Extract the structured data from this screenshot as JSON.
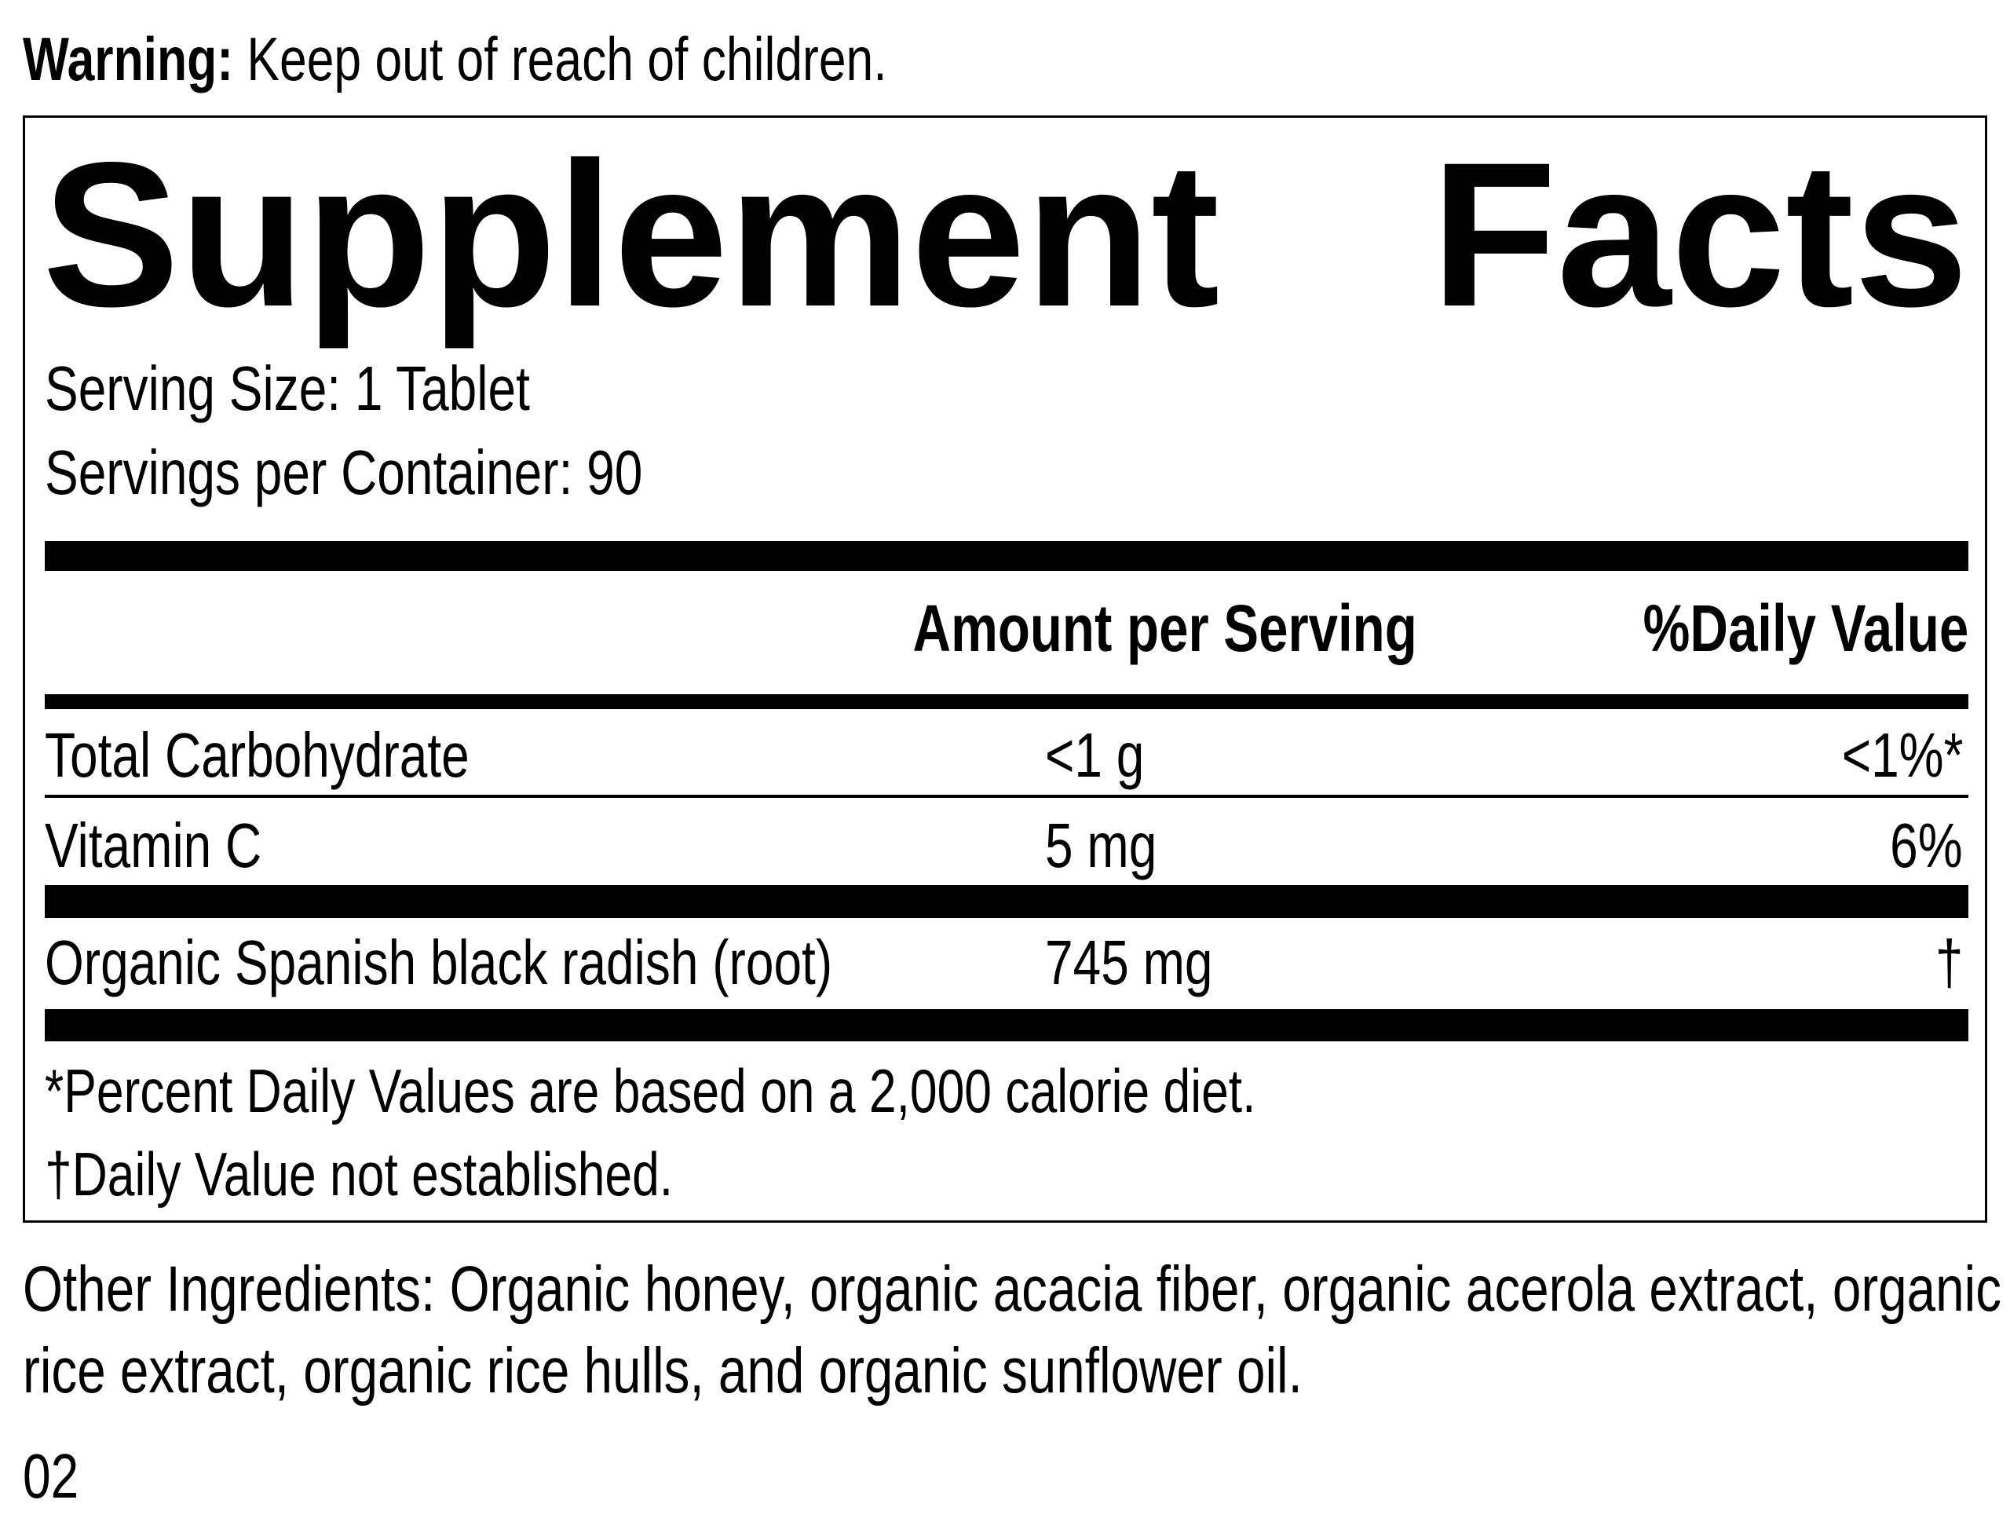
{
  "warning": {
    "label": "Warning:",
    "text": "Keep out of reach of children."
  },
  "panel": {
    "title_word1": "Supplement",
    "title_word2": "Facts",
    "serving_size": "Serving Size: 1 Tablet",
    "servings_per_container": "Servings per Container: 90",
    "header": {
      "amount": "Amount per Serving",
      "daily_value": "%Daily Value"
    },
    "rows": [
      {
        "name": "Total Carbohydrate",
        "amount": "<1 g",
        "dv": "<1%*"
      },
      {
        "name": "Vitamin C",
        "amount": "5 mg",
        "dv": "6%"
      },
      {
        "name": "Organic Spanish black radish (root)",
        "amount": "745 mg",
        "dv": "†"
      }
    ],
    "footnotes": [
      "*Percent Daily Values are based on a 2,000 calorie diet.",
      "†Daily Value not established."
    ]
  },
  "other_ingredients": "Other Ingredients: Organic honey, organic acacia fiber, organic acerola extract, organic rice extract, organic rice hulls, and organic sunflower oil.",
  "code": "02"
}
